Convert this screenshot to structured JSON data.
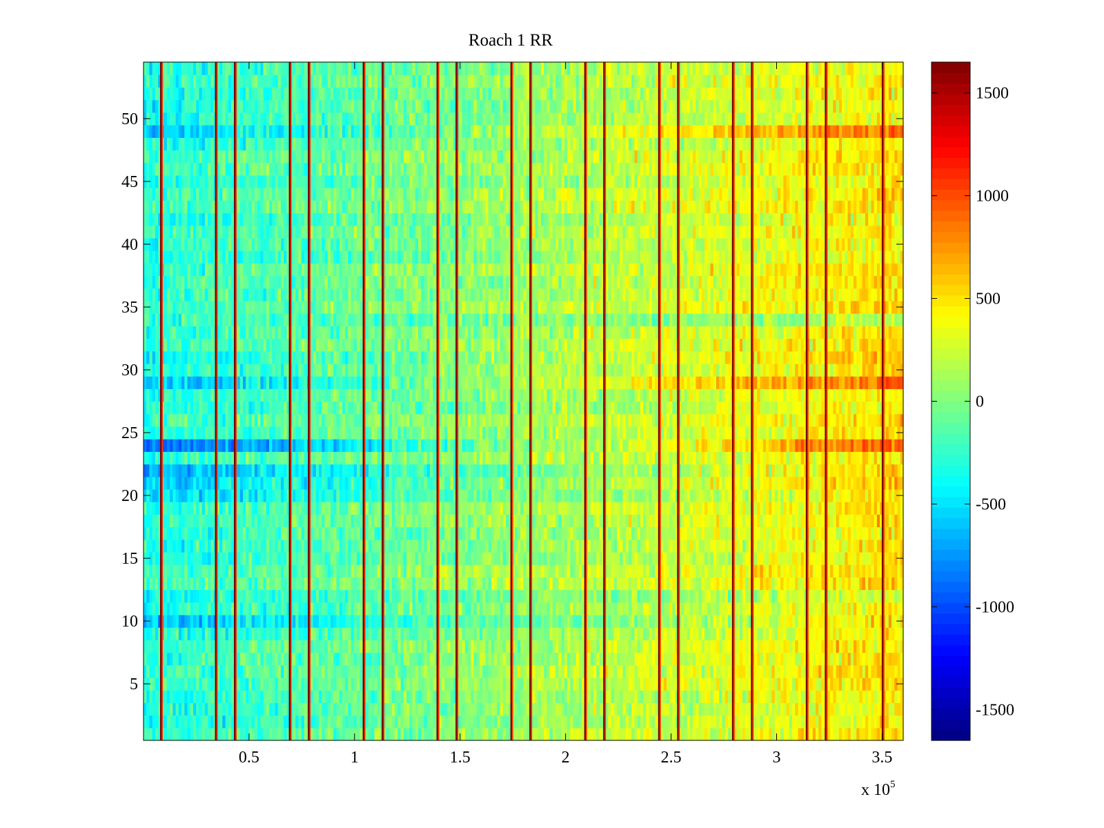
{
  "chart_data": {
    "type": "heatmap",
    "title": "Roach 1 RR",
    "xlabel": "",
    "ylabel": "",
    "x_multiplier_label": "x 10",
    "x_multiplier_exponent": "5",
    "xlim": [
      0,
      3.6
    ],
    "ylim": [
      0.5,
      54.5
    ],
    "x_ticks": [
      0.5,
      1,
      1.5,
      2,
      2.5,
      3,
      3.5
    ],
    "x_tick_labels": [
      "0.5",
      "1",
      "1.5",
      "2",
      "2.5",
      "3",
      "3.5"
    ],
    "y_ticks": [
      5,
      10,
      15,
      20,
      25,
      30,
      35,
      40,
      45,
      50
    ],
    "y_tick_labels": [
      "5",
      "10",
      "15",
      "20",
      "25",
      "30",
      "35",
      "40",
      "45",
      "50"
    ],
    "rows": 54,
    "colorbar": {
      "colormap": "jet",
      "clim": [
        -1650,
        1650
      ],
      "ticks": [
        -1500,
        -1000,
        -500,
        0,
        500,
        1000,
        1500
      ],
      "tick_labels": [
        "-1500",
        "-1000",
        "-500",
        "0",
        "500",
        "1000",
        "1500"
      ]
    },
    "trend": {
      "description_values": "base value rises left to right",
      "x_start_value": -300,
      "x_end_value": 500
    },
    "vertical_bands": [
      0.085,
      0.345,
      0.435,
      0.695,
      0.785,
      1.045,
      1.135,
      1.395,
      1.485,
      1.745,
      1.835,
      2.095,
      2.185,
      2.445,
      2.535,
      2.795,
      2.885,
      3.145,
      3.235,
      3.505
    ],
    "row_offsets": [
      {
        "row": 49,
        "value": -650,
        "end_value": 900
      },
      {
        "row": 34,
        "value": -300,
        "end_value": 150
      },
      {
        "row": 31,
        "value": -500,
        "end_value": 600
      },
      {
        "row": 30,
        "value": -400,
        "end_value": 500
      },
      {
        "row": 29,
        "value": -700,
        "end_value": 900
      },
      {
        "row": 24,
        "value": -1000,
        "end_value": 900
      },
      {
        "row": 22,
        "value": -650,
        "end_value": 600
      },
      {
        "row": 21,
        "value": -650,
        "end_value": 600
      },
      {
        "row": 20,
        "value": -550,
        "end_value": 500
      },
      {
        "row": 12,
        "value": -350,
        "end_value": 350
      },
      {
        "row": 10,
        "value": -600,
        "end_value": 500
      }
    ]
  }
}
